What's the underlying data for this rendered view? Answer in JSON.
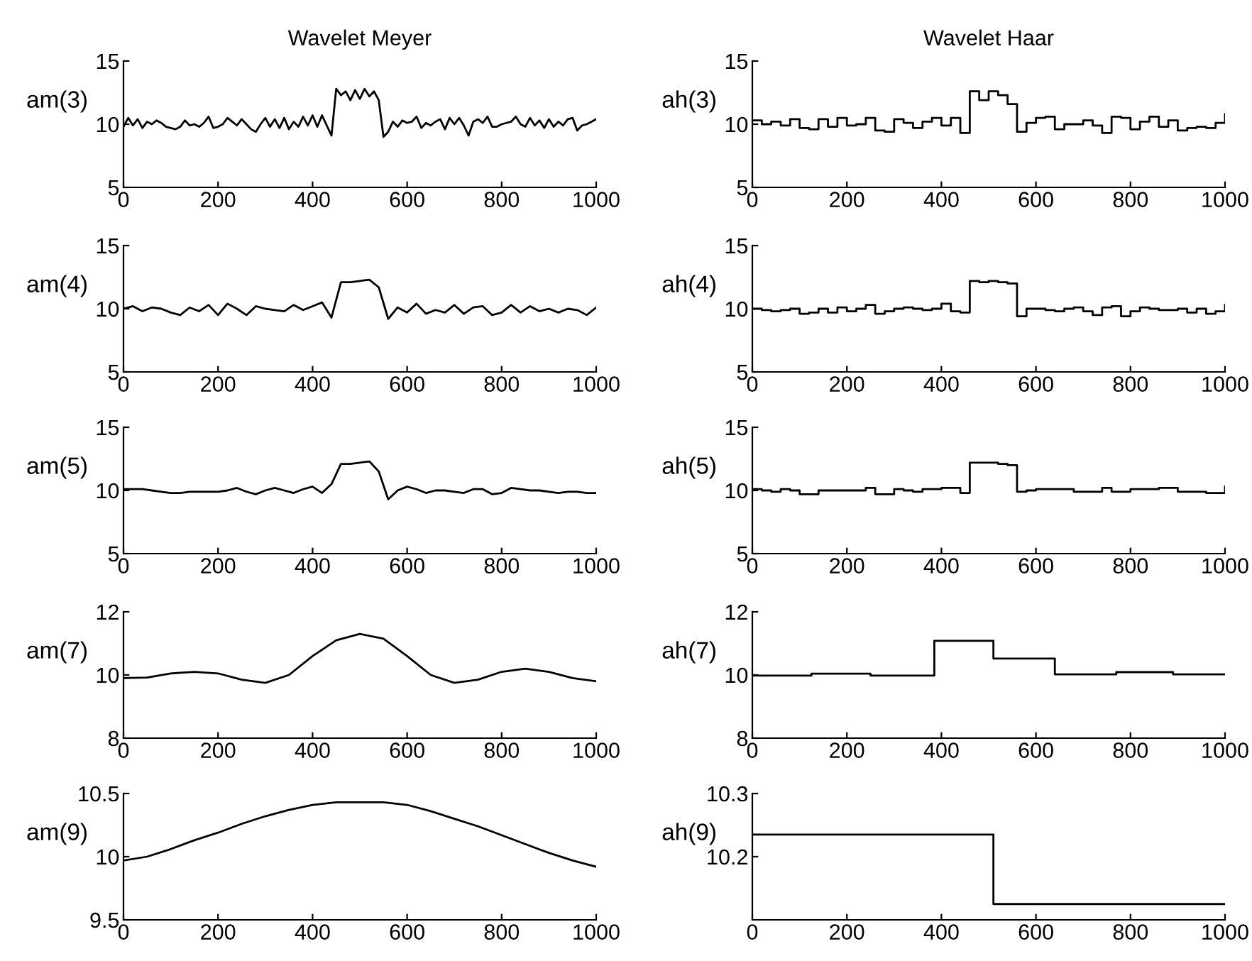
{
  "chart_data": [
    {
      "type": "line",
      "title": "Wavelet Meyer",
      "ylabel": "am(3)",
      "xlim": [
        0,
        1000
      ],
      "xticks": [
        0,
        200,
        400,
        600,
        800,
        1000
      ],
      "ylim": [
        5,
        15
      ],
      "yticks": [
        5,
        10,
        15
      ],
      "series": [
        {
          "color": "#000000",
          "x": [
            0,
            10,
            20,
            30,
            40,
            50,
            60,
            70,
            80,
            90,
            100,
            110,
            120,
            130,
            140,
            150,
            160,
            170,
            180,
            190,
            200,
            210,
            220,
            230,
            240,
            250,
            260,
            270,
            280,
            290,
            300,
            310,
            320,
            330,
            340,
            350,
            360,
            370,
            380,
            390,
            400,
            410,
            420,
            430,
            440,
            450,
            460,
            470,
            480,
            490,
            500,
            510,
            520,
            530,
            540,
            550,
            560,
            570,
            580,
            590,
            600,
            610,
            620,
            630,
            640,
            650,
            660,
            670,
            680,
            690,
            700,
            710,
            720,
            730,
            740,
            750,
            760,
            770,
            780,
            790,
            800,
            810,
            820,
            830,
            840,
            850,
            860,
            870,
            880,
            890,
            900,
            910,
            920,
            930,
            940,
            950,
            960,
            970,
            980,
            990,
            1000
          ],
          "values": [
            9.8,
            10.5,
            9.9,
            10.4,
            9.7,
            10.2,
            10.0,
            10.3,
            10.1,
            9.8,
            9.7,
            9.6,
            9.8,
            10.3,
            9.9,
            10.0,
            9.8,
            10.1,
            10.6,
            9.7,
            9.8,
            10.0,
            10.5,
            10.2,
            9.9,
            10.4,
            10.0,
            9.6,
            9.4,
            10.0,
            10.5,
            9.8,
            10.4,
            9.7,
            10.5,
            9.6,
            10.2,
            9.8,
            10.6,
            9.9,
            10.7,
            9.8,
            10.7,
            9.9,
            9.1,
            12.8,
            12.3,
            12.6,
            11.9,
            12.7,
            12.0,
            12.8,
            12.2,
            12.6,
            11.9,
            9.0,
            9.4,
            10.2,
            9.8,
            10.3,
            10.1,
            10.2,
            10.6,
            9.7,
            10.1,
            9.9,
            10.2,
            10.4,
            9.6,
            10.5,
            10.0,
            10.5,
            9.9,
            9.1,
            10.2,
            10.4,
            10.1,
            10.6,
            9.8,
            9.8,
            10.0,
            10.1,
            10.2,
            10.6,
            10.0,
            9.8,
            10.5,
            9.9,
            10.3,
            9.7,
            10.4,
            9.8,
            10.2,
            9.9,
            10.4,
            10.5,
            9.5,
            9.9,
            10.0,
            10.2,
            10.4
          ]
        }
      ]
    },
    {
      "type": "step",
      "title": "Wavelet Haar",
      "ylabel": "ah(3)",
      "xlim": [
        0,
        1000
      ],
      "xticks": [
        0,
        200,
        400,
        600,
        800,
        1000
      ],
      "ylim": [
        5,
        15
      ],
      "yticks": [
        5,
        10,
        15
      ],
      "series": [
        {
          "color": "#000000",
          "x": [
            0,
            20,
            40,
            60,
            80,
            100,
            120,
            140,
            160,
            180,
            200,
            220,
            240,
            260,
            280,
            300,
            320,
            340,
            360,
            380,
            400,
            420,
            440,
            460,
            480,
            500,
            520,
            540,
            560,
            580,
            600,
            620,
            640,
            660,
            680,
            700,
            720,
            740,
            760,
            780,
            800,
            820,
            840,
            860,
            880,
            900,
            920,
            940,
            960,
            980,
            1000
          ],
          "values": [
            10.3,
            10.0,
            10.2,
            9.9,
            10.4,
            9.7,
            9.6,
            10.4,
            9.8,
            10.5,
            9.9,
            10.0,
            10.5,
            9.5,
            9.4,
            10.4,
            10.1,
            9.7,
            10.2,
            10.5,
            9.9,
            10.5,
            9.3,
            12.6,
            11.9,
            12.6,
            12.3,
            11.6,
            9.4,
            10.1,
            10.5,
            10.6,
            9.6,
            10.0,
            10.0,
            10.3,
            9.9,
            9.3,
            10.6,
            10.5,
            9.6,
            10.2,
            10.6,
            9.8,
            10.3,
            9.5,
            9.7,
            9.8,
            9.7,
            10.1,
            10.8
          ]
        }
      ]
    },
    {
      "type": "line",
      "ylabel": "am(4)",
      "xlim": [
        0,
        1000
      ],
      "xticks": [
        0,
        200,
        400,
        600,
        800,
        1000
      ],
      "ylim": [
        5,
        15
      ],
      "yticks": [
        5,
        10,
        15
      ],
      "series": [
        {
          "color": "#000000",
          "x": [
            0,
            20,
            40,
            60,
            80,
            100,
            120,
            140,
            160,
            180,
            200,
            220,
            240,
            260,
            280,
            300,
            320,
            340,
            360,
            380,
            400,
            420,
            440,
            460,
            480,
            500,
            520,
            540,
            560,
            580,
            600,
            620,
            640,
            660,
            680,
            700,
            720,
            740,
            760,
            780,
            800,
            820,
            840,
            860,
            880,
            900,
            920,
            940,
            960,
            980,
            1000
          ],
          "values": [
            10.0,
            10.2,
            9.8,
            10.1,
            10.0,
            9.7,
            9.5,
            10.1,
            9.8,
            10.3,
            9.5,
            10.4,
            10.0,
            9.5,
            10.2,
            10.0,
            9.9,
            9.8,
            10.3,
            9.9,
            10.2,
            10.5,
            9.3,
            12.1,
            12.1,
            12.2,
            12.3,
            11.7,
            9.2,
            10.1,
            9.7,
            10.4,
            9.6,
            9.9,
            9.7,
            10.3,
            9.6,
            10.1,
            10.2,
            9.5,
            9.7,
            10.3,
            9.7,
            10.2,
            9.8,
            10.0,
            9.7,
            10.0,
            9.9,
            9.5,
            10.1
          ]
        }
      ]
    },
    {
      "type": "step",
      "ylabel": "ah(4)",
      "xlim": [
        0,
        1000
      ],
      "xticks": [
        0,
        200,
        400,
        600,
        800,
        1000
      ],
      "ylim": [
        5,
        15
      ],
      "yticks": [
        5,
        10,
        15
      ],
      "series": [
        {
          "color": "#000000",
          "x": [
            0,
            20,
            40,
            60,
            80,
            100,
            120,
            140,
            160,
            180,
            200,
            220,
            240,
            260,
            280,
            300,
            320,
            340,
            360,
            380,
            400,
            420,
            440,
            460,
            480,
            500,
            520,
            540,
            560,
            580,
            600,
            620,
            640,
            660,
            680,
            700,
            720,
            740,
            760,
            780,
            800,
            820,
            840,
            860,
            880,
            900,
            920,
            940,
            960,
            980,
            1000
          ],
          "values": [
            10.0,
            9.9,
            9.8,
            9.9,
            10.0,
            9.6,
            9.7,
            10.0,
            9.7,
            10.1,
            9.8,
            10.0,
            10.3,
            9.6,
            9.8,
            10.0,
            10.1,
            10.0,
            9.9,
            10.0,
            10.4,
            9.8,
            9.7,
            12.2,
            12.1,
            12.2,
            12.1,
            12.0,
            9.4,
            10.0,
            10.0,
            9.9,
            9.8,
            10.0,
            10.1,
            9.8,
            9.5,
            10.1,
            10.2,
            9.4,
            9.8,
            10.1,
            10.0,
            9.9,
            9.9,
            10.0,
            9.7,
            10.0,
            9.6,
            9.8,
            10.3
          ]
        }
      ]
    },
    {
      "type": "line",
      "ylabel": "am(5)",
      "xlim": [
        0,
        1000
      ],
      "xticks": [
        0,
        200,
        400,
        600,
        800,
        1000
      ],
      "ylim": [
        5,
        15
      ],
      "yticks": [
        5,
        10,
        15
      ],
      "series": [
        {
          "color": "#000000",
          "x": [
            0,
            20,
            40,
            60,
            80,
            100,
            120,
            140,
            160,
            180,
            200,
            220,
            240,
            260,
            280,
            300,
            320,
            340,
            360,
            380,
            400,
            420,
            440,
            460,
            480,
            500,
            520,
            540,
            560,
            580,
            600,
            620,
            640,
            660,
            680,
            700,
            720,
            740,
            760,
            780,
            800,
            820,
            840,
            860,
            880,
            900,
            920,
            940,
            960,
            980,
            1000
          ],
          "values": [
            10.1,
            10.1,
            10.1,
            10.0,
            9.9,
            9.8,
            9.8,
            9.9,
            9.9,
            9.9,
            9.9,
            10.0,
            10.2,
            9.9,
            9.7,
            10.0,
            10.2,
            10.0,
            9.8,
            10.1,
            10.3,
            9.8,
            10.5,
            12.1,
            12.1,
            12.2,
            12.3,
            11.5,
            9.3,
            10.0,
            10.3,
            10.1,
            9.8,
            10.0,
            10.0,
            9.9,
            9.8,
            10.1,
            10.1,
            9.7,
            9.8,
            10.2,
            10.1,
            10.0,
            10.0,
            9.9,
            9.8,
            9.9,
            9.9,
            9.8,
            9.8
          ]
        }
      ]
    },
    {
      "type": "step",
      "ylabel": "ah(5)",
      "xlim": [
        0,
        1000
      ],
      "xticks": [
        0,
        200,
        400,
        600,
        800,
        1000
      ],
      "ylim": [
        5,
        15
      ],
      "yticks": [
        5,
        10,
        15
      ],
      "series": [
        {
          "color": "#000000",
          "x": [
            0,
            20,
            40,
            60,
            80,
            100,
            120,
            140,
            160,
            180,
            200,
            220,
            240,
            260,
            280,
            300,
            320,
            340,
            360,
            380,
            400,
            420,
            440,
            460,
            480,
            500,
            520,
            540,
            560,
            580,
            600,
            620,
            640,
            660,
            680,
            700,
            720,
            740,
            760,
            780,
            800,
            820,
            840,
            860,
            880,
            900,
            920,
            940,
            960,
            980,
            1000
          ],
          "values": [
            10.1,
            10.0,
            9.9,
            10.1,
            10.0,
            9.7,
            9.7,
            10.0,
            10.0,
            10.0,
            10.0,
            10.0,
            10.2,
            9.7,
            9.7,
            10.1,
            10.0,
            9.9,
            10.1,
            10.1,
            10.2,
            10.2,
            9.8,
            12.2,
            12.2,
            12.2,
            12.1,
            12.0,
            9.9,
            10.0,
            10.1,
            10.1,
            10.1,
            10.1,
            9.9,
            9.9,
            9.9,
            10.2,
            9.9,
            9.9,
            10.1,
            10.1,
            10.1,
            10.2,
            10.2,
            9.9,
            9.9,
            9.9,
            9.8,
            9.8,
            10.3
          ]
        }
      ]
    },
    {
      "type": "line",
      "ylabel": "am(7)",
      "xlim": [
        0,
        1000
      ],
      "xticks": [
        0,
        200,
        400,
        600,
        800,
        1000
      ],
      "ylim": [
        8,
        12
      ],
      "yticks": [
        8,
        10,
        12
      ],
      "series": [
        {
          "color": "#000000",
          "x": [
            0,
            50,
            100,
            150,
            200,
            250,
            300,
            350,
            400,
            450,
            500,
            550,
            600,
            650,
            700,
            750,
            800,
            850,
            900,
            950,
            1000
          ],
          "values": [
            9.9,
            9.92,
            10.05,
            10.1,
            10.05,
            9.85,
            9.75,
            10.0,
            10.6,
            11.1,
            11.3,
            11.15,
            10.6,
            10.0,
            9.75,
            9.85,
            10.1,
            10.2,
            10.1,
            9.9,
            9.8
          ]
        }
      ]
    },
    {
      "type": "step",
      "ylabel": "ah(7)",
      "xlim": [
        0,
        1000
      ],
      "xticks": [
        0,
        200,
        400,
        600,
        800,
        1000
      ],
      "ylim": [
        8,
        12
      ],
      "yticks": [
        8,
        10,
        12
      ],
      "series": [
        {
          "color": "#000000",
          "x": [
            0,
            125,
            250,
            385,
            510,
            640,
            770,
            890,
            1000
          ],
          "values": [
            9.98,
            10.04,
            9.98,
            11.08,
            10.52,
            10.02,
            10.09,
            10.02,
            10.02
          ]
        }
      ]
    },
    {
      "type": "line",
      "ylabel": "am(9)",
      "xlim": [
        0,
        1000
      ],
      "xticks": [
        0,
        200,
        400,
        600,
        800,
        1000
      ],
      "ylim": [
        9.5,
        10.5
      ],
      "yticks": [
        9.5,
        10,
        10.5
      ],
      "series": [
        {
          "color": "#000000",
          "x": [
            0,
            50,
            100,
            150,
            200,
            250,
            300,
            350,
            400,
            450,
            500,
            550,
            600,
            650,
            700,
            750,
            800,
            850,
            900,
            950,
            1000
          ],
          "values": [
            9.97,
            10.0,
            10.06,
            10.13,
            10.19,
            10.26,
            10.32,
            10.37,
            10.41,
            10.43,
            10.43,
            10.43,
            10.41,
            10.36,
            10.3,
            10.24,
            10.17,
            10.1,
            10.03,
            9.97,
            9.92
          ]
        }
      ]
    },
    {
      "type": "step",
      "ylabel": "ah(9)",
      "xlim": [
        0,
        1000
      ],
      "xticks": [
        0,
        200,
        400,
        600,
        800,
        1000
      ],
      "ylim": [
        10.1,
        10.3
      ],
      "yticks": [
        10.2,
        10.3
      ],
      "series": [
        {
          "color": "#000000",
          "x": [
            0,
            510,
            1000
          ],
          "values": [
            10.235,
            10.125,
            10.125
          ]
        }
      ]
    }
  ]
}
